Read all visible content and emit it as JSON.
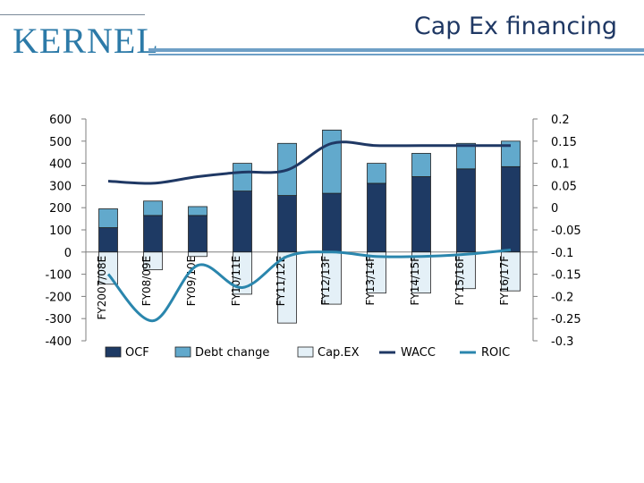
{
  "header": {
    "logo_text": "KERNEL",
    "title": "Cap Ex financing"
  },
  "chart_data": {
    "type": "bar",
    "categories": [
      "FY2007/08E",
      "FY08/09E",
      "FY09/10E",
      "FY10/11E",
      "FY11/12E",
      "FY12/13F",
      "FY13/14F",
      "FY14/15F",
      "FY15/16F",
      "FY16/17F"
    ],
    "series": [
      {
        "name": "OCF",
        "kind": "bar",
        "axis": "left",
        "stack": "positive",
        "values": [
          110,
          165,
          165,
          275,
          255,
          265,
          310,
          340,
          375,
          385
        ]
      },
      {
        "name": "Debt change",
        "kind": "bar",
        "axis": "left",
        "stack": "positive",
        "values": [
          85,
          65,
          40,
          125,
          235,
          285,
          90,
          105,
          115,
          115
        ]
      },
      {
        "name": "Cap.EX",
        "kind": "bar",
        "axis": "left",
        "stack": "negative",
        "values": [
          -145,
          -80,
          -20,
          -190,
          -320,
          -235,
          -185,
          -185,
          -165,
          -175
        ]
      },
      {
        "name": "WACC",
        "kind": "line",
        "axis": "right",
        "values": [
          0.06,
          0.055,
          0.07,
          0.08,
          0.085,
          0.145,
          0.14,
          0.14,
          0.14,
          0.14
        ]
      },
      {
        "name": "ROIC",
        "kind": "line",
        "axis": "right",
        "values": [
          -0.15,
          -0.255,
          -0.13,
          -0.18,
          -0.11,
          -0.1,
          -0.11,
          -0.11,
          -0.105,
          -0.095
        ]
      }
    ],
    "y_left": {
      "min": -400,
      "max": 600,
      "ticks": [
        "600",
        "500",
        "400",
        "300",
        "200",
        "100",
        "0",
        "-100",
        "-200",
        "-300",
        "-400"
      ]
    },
    "y_right": {
      "min": -0.3,
      "max": 0.2,
      "ticks": [
        "0.2",
        "0.15",
        "0.1",
        "0.05",
        "0",
        "-0.05",
        "-0.1",
        "-0.15",
        "-0.2",
        "-0.25",
        "-0.3"
      ]
    },
    "legend_position": "bottom",
    "colors": {
      "OCF": "#1e3a64",
      "Debt change": "#62a9cc",
      "Cap.EX": "#e4f0f7",
      "WACC": "#1f3864",
      "ROIC": "#2a86ad"
    }
  }
}
